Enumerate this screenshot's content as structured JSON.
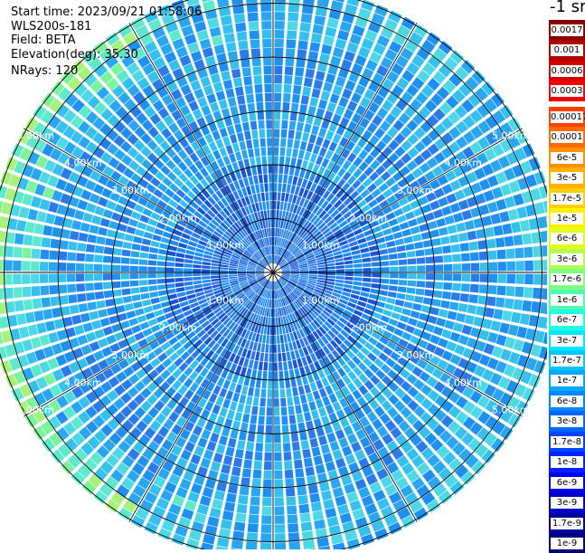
{
  "info": {
    "start_time": "Start time: 2023/09/21 01:58:06",
    "instrument": "WLS200s-181",
    "field": "Field: BETA",
    "elevation": "Elevation(deg): 35.30",
    "nrays": "NRays: 120"
  },
  "colorbar": {
    "title": "-1 sr",
    "labels": [
      "0.0017",
      "0.001",
      "0.0006",
      "0.0003",
      "0.00017",
      "0.0001",
      "6e-5",
      "3e-5",
      "1.7e-5",
      "1e-5",
      "6e-6",
      "3e-6",
      "1.7e-6",
      "1e-6",
      "6e-7",
      "3e-7",
      "1.7e-7",
      "1e-7",
      "6e-8",
      "3e-8",
      "1.7e-8",
      "1e-8",
      "6e-9",
      "3e-9",
      "1.7e-9",
      "1e-9"
    ],
    "colors": [
      "#8b0000",
      "#b00000",
      "#d40000",
      "#f20000",
      "#ff4000",
      "#ff6a00",
      "#ff9000",
      "#ffb000",
      "#ffd000",
      "#fff000",
      "#e0ff20",
      "#b4ff50",
      "#80ff80",
      "#50ffb0",
      "#20ffe0",
      "#00e8ff",
      "#00c8ff",
      "#00a8ff",
      "#0088ff",
      "#0066ff",
      "#0044ff",
      "#0022ff",
      "#0000f0",
      "#0000c8",
      "#0000a0",
      "#000080"
    ]
  },
  "chart_data": {
    "type": "ppi",
    "field": "BETA",
    "units": "-1 sr",
    "elevation_deg": 35.3,
    "nrays": 120,
    "range_rings_km": [
      1,
      2,
      3,
      4,
      5
    ],
    "ring_labels": [
      "1.00km",
      "2.00km",
      "3.00km",
      "4.00km",
      "5.00km"
    ],
    "azimuth_spokes_deg": [
      0,
      30,
      60,
      90,
      120,
      150,
      180,
      210,
      240,
      270,
      300,
      330
    ],
    "max_range_km": 5.35,
    "range_gates_per_ray": 32,
    "typical_value_center": "1e-6",
    "typical_value_outer": "6e-7",
    "outer_west_value": "3e-7"
  }
}
